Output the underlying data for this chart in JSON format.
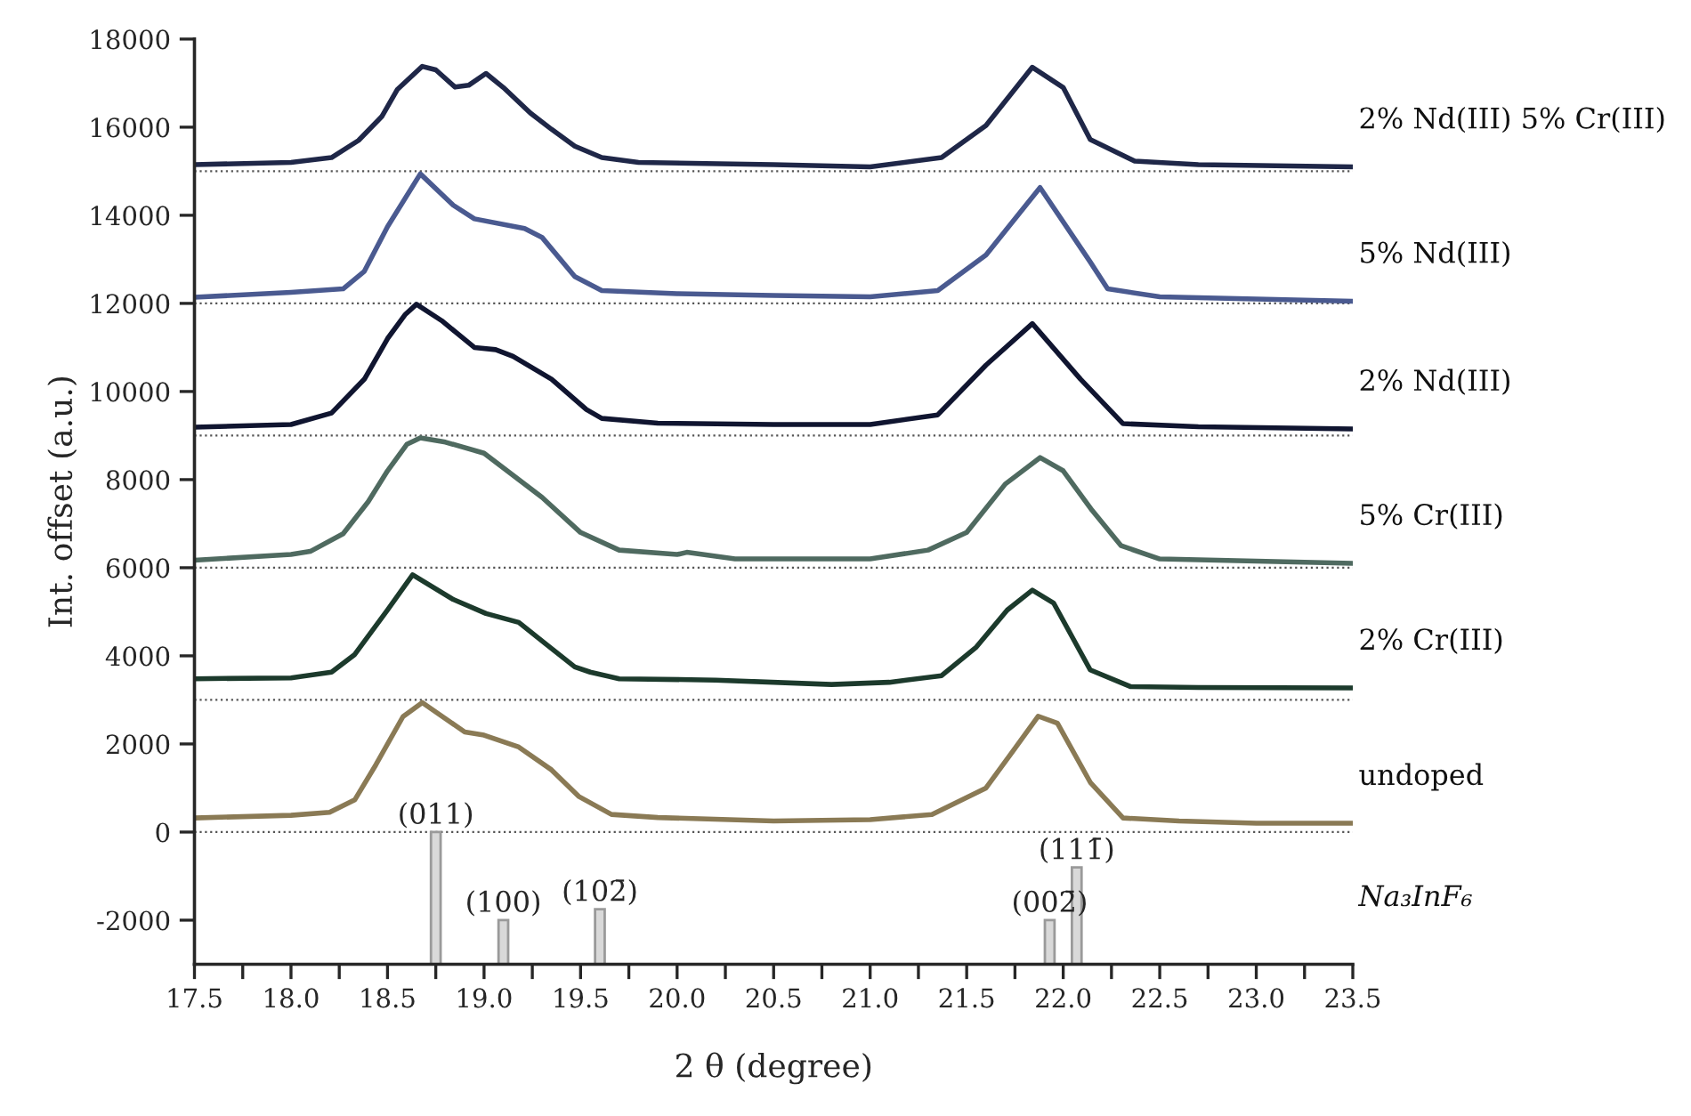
{
  "chart_data": {
    "type": "line",
    "xlabel": "2 θ (degree)",
    "ylabel": "Int. offset (a.u.)",
    "xlim": [
      17.5,
      23.5
    ],
    "xticks": [
      17.5,
      {
        "value": 17.75,
        "label": null
      },
      {
        "value": 18.0,
        "label": "18.0"
      },
      {
        "value": 18.25,
        "label": null
      },
      18.5,
      {
        "value": 18.75,
        "label": null
      },
      {
        "value": 19.0,
        "label": "19.0"
      },
      {
        "value": 19.25,
        "label": null
      },
      19.5,
      {
        "value": 19.75,
        "label": null
      },
      {
        "value": 20.0,
        "label": "20.0"
      },
      {
        "value": 20.25,
        "label": null
      },
      20.5,
      {
        "value": 20.75,
        "label": null
      },
      {
        "value": 21.0,
        "label": "21.0"
      },
      {
        "value": 21.25,
        "label": null
      },
      21.5,
      {
        "value": 21.75,
        "label": null
      },
      {
        "value": 22.0,
        "label": "22.0"
      },
      {
        "value": 22.25,
        "label": null
      },
      22.5,
      {
        "value": 22.75,
        "label": null
      },
      {
        "value": 23.0,
        "label": "23.0"
      },
      {
        "value": 23.25,
        "label": null
      },
      23.5
    ],
    "ylim": [
      -3000,
      18000
    ],
    "yticks": [
      -2000,
      0,
      2000,
      4000,
      6000,
      8000,
      10000,
      12000,
      14000,
      16000,
      18000
    ],
    "grid": false,
    "legend": false,
    "line_style": "solid",
    "marker": "none",
    "series": [
      {
        "name": "undoped",
        "color": "#8a7a55",
        "x": [
          17.5,
          18.0,
          18.2,
          18.33,
          18.44,
          18.58,
          18.68,
          18.9,
          19.0,
          19.18,
          19.35,
          19.49,
          19.66,
          19.9,
          20.5,
          21.0,
          21.32,
          21.6,
          21.75,
          21.87,
          21.97,
          22.14,
          22.31,
          22.6,
          23.0,
          23.5
        ],
        "values": [
          320,
          380,
          450,
          730,
          1530,
          2620,
          2940,
          2270,
          2200,
          1930,
          1410,
          810,
          400,
          330,
          250,
          280,
          400,
          1000,
          1900,
          2630,
          2470,
          1130,
          320,
          250,
          200,
          200
        ]
      },
      {
        "name": "2% Cr(III)",
        "color": "#1c3a2c",
        "x": [
          17.5,
          18.0,
          18.21,
          18.33,
          18.5,
          18.63,
          18.84,
          19.01,
          19.18,
          19.32,
          19.47,
          19.55,
          19.7,
          20.2,
          20.8,
          21.1,
          21.37,
          21.55,
          21.71,
          21.84,
          21.95,
          22.14,
          22.35,
          22.7,
          23.5
        ],
        "values": [
          3480,
          3500,
          3630,
          4030,
          5040,
          5840,
          5280,
          4960,
          4760,
          4270,
          3750,
          3630,
          3480,
          3450,
          3350,
          3400,
          3550,
          4200,
          5040,
          5490,
          5200,
          3680,
          3300,
          3280,
          3270
        ]
      },
      {
        "name": "5% Cr(III)",
        "color": "#4f6a60",
        "x": [
          17.5,
          18.0,
          18.1,
          18.27,
          18.4,
          18.5,
          18.6,
          18.67,
          18.8,
          19.0,
          19.3,
          19.5,
          19.7,
          20.0,
          20.05,
          20.3,
          21.0,
          21.3,
          21.5,
          21.7,
          21.88,
          22.0,
          22.15,
          22.3,
          22.5,
          23.5
        ],
        "values": [
          6170,
          6300,
          6370,
          6770,
          7500,
          8200,
          8800,
          8950,
          8850,
          8600,
          7600,
          6800,
          6400,
          6300,
          6350,
          6200,
          6200,
          6400,
          6800,
          7900,
          8500,
          8200,
          7300,
          6500,
          6200,
          6100
        ]
      },
      {
        "name": "2% Nd(III)",
        "color": "#101530",
        "x": [
          17.5,
          18.0,
          18.21,
          18.38,
          18.5,
          18.59,
          18.65,
          18.78,
          18.95,
          19.06,
          19.15,
          19.35,
          19.53,
          19.61,
          19.9,
          20.5,
          21.0,
          21.35,
          21.6,
          21.84,
          22.09,
          22.31,
          22.7,
          23.5
        ],
        "values": [
          9190,
          9250,
          9510,
          10280,
          11200,
          11740,
          11980,
          11610,
          11000,
          10950,
          10800,
          10280,
          9590,
          9390,
          9280,
          9250,
          9250,
          9470,
          10600,
          11540,
          10280,
          9270,
          9200,
          9150
        ]
      },
      {
        "name": "5% Nd(III)",
        "color": "#4a5a90",
        "x": [
          17.5,
          18.0,
          18.27,
          18.38,
          18.5,
          18.67,
          18.84,
          18.95,
          19.21,
          19.3,
          19.47,
          19.61,
          20.0,
          20.5,
          21.0,
          21.35,
          21.6,
          21.88,
          22.14,
          22.23,
          22.5,
          23.5
        ],
        "values": [
          12140,
          12250,
          12330,
          12730,
          13740,
          14940,
          14230,
          13920,
          13700,
          13500,
          12610,
          12290,
          12220,
          12180,
          12150,
          12290,
          13100,
          14630,
          12940,
          12330,
          12150,
          12050
        ]
      },
      {
        "name": "2% Nd(III) 5% Cr(III)",
        "color": "#1f2748",
        "x": [
          17.5,
          18.0,
          18.21,
          18.35,
          18.47,
          18.55,
          18.68,
          18.75,
          18.85,
          18.92,
          19.01,
          19.1,
          19.24,
          19.35,
          19.47,
          19.61,
          19.8,
          20.5,
          21.0,
          21.37,
          21.6,
          21.84,
          22.0,
          22.14,
          22.37,
          22.7,
          23.5
        ],
        "values": [
          15150,
          15200,
          15310,
          15700,
          16240,
          16850,
          17380,
          17300,
          16910,
          16950,
          17220,
          16900,
          16320,
          15950,
          15570,
          15310,
          15200,
          15150,
          15100,
          15310,
          16040,
          17360,
          16900,
          15720,
          15230,
          15150,
          15100
        ]
      },
      {
        "name": "Na₃InF₆",
        "type": "bar",
        "color": "#d9d9d9",
        "x": [
          18.75,
          19.1,
          19.6,
          21.93,
          22.07
        ],
        "base": [
          -3000,
          -3000,
          -3000,
          -3000,
          -3000
        ],
        "values": [
          3000,
          1000,
          1250,
          1000,
          2200
        ]
      }
    ],
    "ref_lines": [
      {
        "axis": "y",
        "value": 0,
        "line_style": "dotted",
        "color": "#555555"
      },
      {
        "axis": "y",
        "value": 3000,
        "line_style": "dotted",
        "color": "#555555"
      },
      {
        "axis": "y",
        "value": 6000,
        "line_style": "dotted",
        "color": "#555555"
      },
      {
        "axis": "y",
        "value": 9000,
        "line_style": "dotted",
        "color": "#555555"
      },
      {
        "axis": "y",
        "value": 12000,
        "line_style": "dotted",
        "color": "#555555"
      },
      {
        "axis": "y",
        "value": 15000,
        "line_style": "dotted",
        "color": "#555555"
      }
    ],
    "annotations": [
      {
        "text": "(011)",
        "x": 18.75,
        "y": 0
      },
      {
        "text": "(100)",
        "x": 19.1,
        "y": -2000
      },
      {
        "text": "(102̄)",
        "x": 19.6,
        "y": -1750
      },
      {
        "text": "(002̄)",
        "x": 21.93,
        "y": -2000
      },
      {
        "text": "(111̄)",
        "x": 22.07,
        "y": -800
      }
    ]
  }
}
